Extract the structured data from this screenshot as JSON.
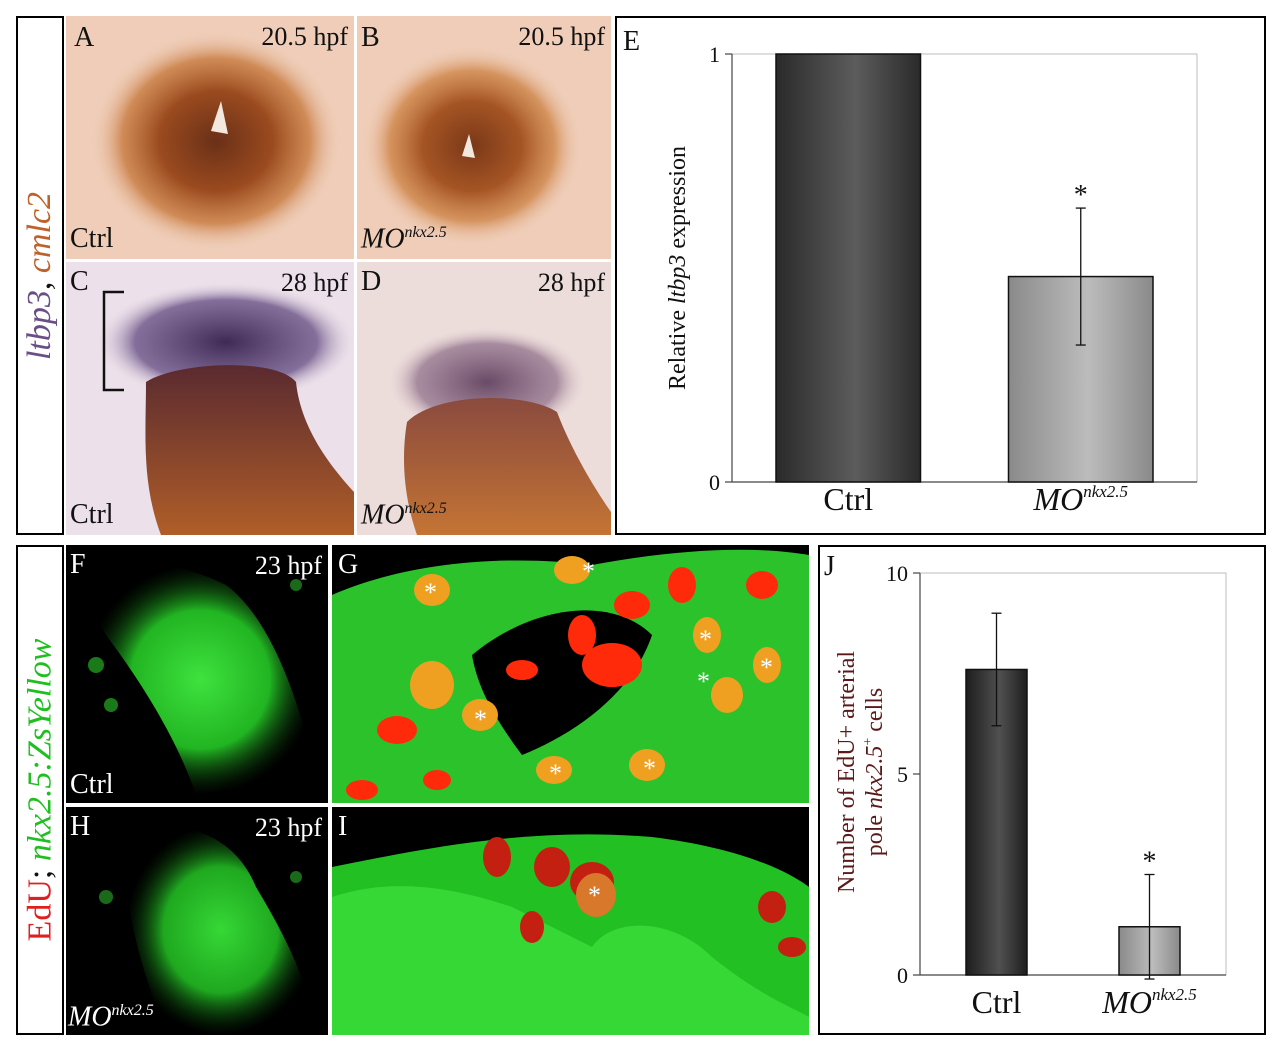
{
  "top_side_label": {
    "gene1": "ltbp3",
    "sep": ", ",
    "gene2": "cmlc2",
    "color1": "#6a4f86",
    "color2": "#c0602a"
  },
  "bottom_side_label": {
    "stain": "EdU",
    "sep": "; ",
    "reporter": "nkx2.5:ZsYellow",
    "color1": "#e02020",
    "color2": "#1fbf1f"
  },
  "panels": {
    "A": {
      "letter": "A",
      "stage": "20.5 hpf",
      "condition": "Ctrl"
    },
    "B": {
      "letter": "B",
      "stage": "20.5 hpf",
      "condition": "MO",
      "condition_sup": "nkx2.5"
    },
    "C": {
      "letter": "C",
      "stage": "28 hpf",
      "condition": "Ctrl"
    },
    "D": {
      "letter": "D",
      "stage": "28 hpf",
      "condition": "MO",
      "condition_sup": "nkx2.5"
    },
    "F": {
      "letter": "F",
      "stage": "23 hpf",
      "condition": "Ctrl"
    },
    "G": {
      "letter": "G",
      "marker": "*"
    },
    "H": {
      "letter": "H",
      "stage": "23 hpf",
      "condition": "MO",
      "condition_sup": "nkx2.5"
    },
    "I": {
      "letter": "I",
      "marker": "*"
    }
  },
  "chart_data": [
    {
      "panel": "E",
      "type": "bar",
      "categories": [
        "Ctrl",
        "MO"
      ],
      "category_sups": [
        "",
        "nkx2.5"
      ],
      "values": [
        1.0,
        0.48
      ],
      "errors": [
        null,
        0.16
      ],
      "significance": [
        "",
        "*"
      ],
      "ylim": [
        0,
        1
      ],
      "yticks": [
        "0",
        "1"
      ],
      "ylabel_prefix": "Relative ",
      "ylabel_gene": "ltbp3",
      "ylabel_suffix": " expression",
      "bar_colors": [
        "#2a2a2a",
        "#8a8a8a"
      ]
    },
    {
      "panel": "J",
      "type": "bar",
      "categories": [
        "Ctrl",
        "MO"
      ],
      "category_sups": [
        "",
        "nkx2.5"
      ],
      "values": [
        7.6,
        1.2
      ],
      "errors": [
        1.4,
        1.3
      ],
      "significance": [
        "",
        "*"
      ],
      "ylim": [
        0,
        10
      ],
      "yticks": [
        "0",
        "5",
        "10"
      ],
      "ylabel_line1": "Number of EdU+ arterial",
      "ylabel_line2_prefix": "pole ",
      "ylabel_line2_gene": "nkx2.5",
      "ylabel_line2_sup": "+",
      "ylabel_line2_suffix": " cells",
      "ylabel_color": "#5a1a1a",
      "bar_colors": [
        "#1e1e1e",
        "#8a8a8a"
      ]
    }
  ]
}
